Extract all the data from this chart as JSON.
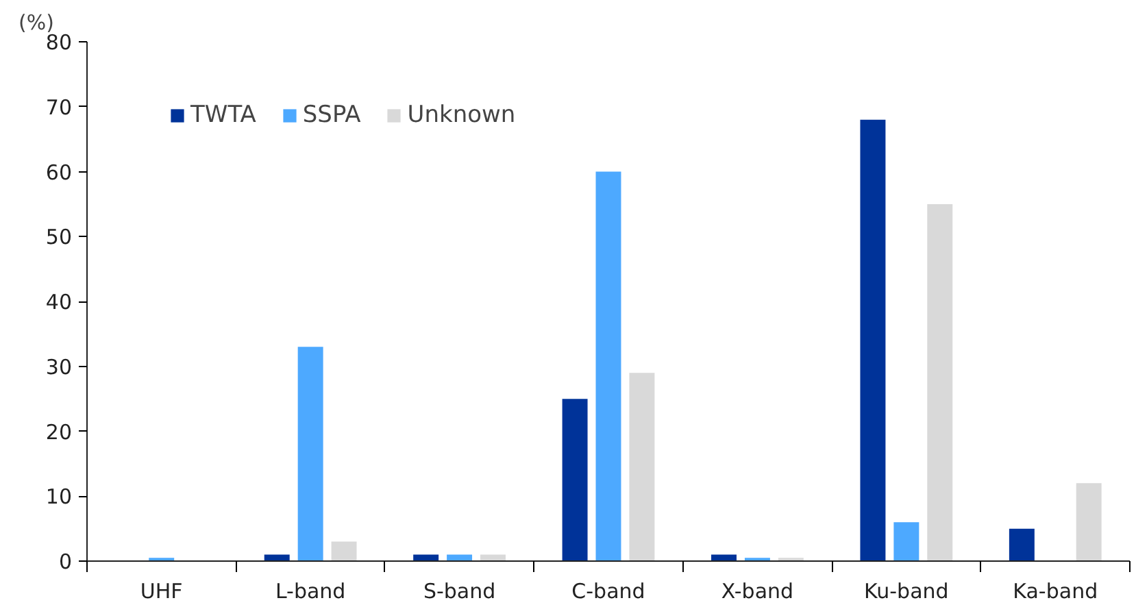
{
  "chart_data": {
    "type": "bar",
    "ylabel": "(%)",
    "categories": [
      "UHF",
      "L-band",
      "S-band",
      "C-band",
      "X-band",
      "Ku-band",
      "Ka-band"
    ],
    "series": [
      {
        "name": "TWTA",
        "color": "#003399",
        "values": [
          0,
          1,
          1,
          25,
          1,
          68,
          5
        ]
      },
      {
        "name": "SSPA",
        "color": "#4da9ff",
        "values": [
          0.5,
          33,
          1,
          60,
          0.5,
          6,
          0
        ]
      },
      {
        "name": "Unknown",
        "color": "#d9d9d9",
        "values": [
          0,
          3,
          1,
          29,
          0.5,
          55,
          12
        ]
      }
    ],
    "ylim": [
      0,
      80
    ],
    "yticks": [
      0,
      10,
      20,
      30,
      40,
      50,
      60,
      70,
      80
    ],
    "grid": false,
    "legend": "top left"
  }
}
